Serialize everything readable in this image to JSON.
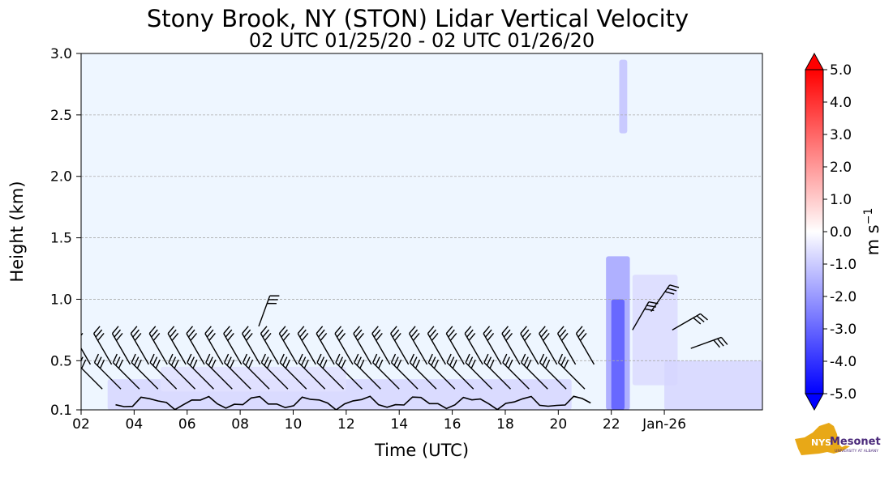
{
  "chart_data": {
    "type": "heatmap",
    "title": "Stony Brook, NY (STON) Lidar Vertical Velocity",
    "subtitle": "02 UTC 01/25/20 - 02 UTC 01/26/20",
    "xlabel": "Time (UTC)",
    "ylabel": "Height (km)",
    "xlim": [
      2,
      27.7
    ],
    "ylim": [
      0.1,
      3.0
    ],
    "x_tick_values": [
      2,
      4,
      6,
      8,
      10,
      12,
      14,
      16,
      18,
      20,
      22,
      24
    ],
    "x_tick_labels": [
      "02",
      "04",
      "06",
      "08",
      "10",
      "12",
      "14",
      "16",
      "18",
      "20",
      "22",
      "Jan-26"
    ],
    "y_tick_values": [
      0.1,
      0.5,
      1.0,
      1.5,
      2.0,
      2.5,
      3.0
    ],
    "y_tick_labels": [
      "0.1",
      "0.5",
      "1.0",
      "1.5",
      "2.0",
      "2.5",
      "3.0"
    ],
    "grid": "horizontal dashed",
    "colorbar": {
      "label": "m s",
      "label_superscript": "−1",
      "vmin": -5.0,
      "vmax": 5.0,
      "tick_values": [
        5,
        4,
        3,
        2,
        1,
        0,
        -1,
        -2,
        -3,
        -4,
        -5
      ],
      "tick_labels": [
        "5.0",
        "4.0",
        "3.0",
        "2.0",
        "1.0",
        "0.0",
        "-1.0",
        "-2.0",
        "-3.0",
        "-4.0",
        "-5.0"
      ],
      "extend": "both"
    },
    "velocity_regions": [
      {
        "x0": 2.0,
        "x1": 27.7,
        "y0": 0.1,
        "y1": 3.0,
        "value": -0.3
      },
      {
        "x0": 3.0,
        "x1": 20.5,
        "y0": 0.1,
        "y1": 0.35,
        "value": -0.8
      },
      {
        "x0": 5.0,
        "x1": 12.0,
        "y0": 0.25,
        "y1": 0.45,
        "value": -0.6
      },
      {
        "x0": 21.8,
        "x1": 22.7,
        "y0": 0.1,
        "y1": 1.35,
        "value": -1.8
      },
      {
        "x0": 22.0,
        "x1": 22.5,
        "y0": 0.1,
        "y1": 1.0,
        "value": -3.2
      },
      {
        "x0": 22.3,
        "x1": 22.6,
        "y0": 2.35,
        "y1": 2.95,
        "value": -1.2
      },
      {
        "x0": 22.8,
        "x1": 24.5,
        "y0": 0.3,
        "y1": 1.2,
        "value": -0.7
      },
      {
        "x0": 24.0,
        "x1": 27.7,
        "y0": 0.1,
        "y1": 0.5,
        "value": -0.8
      }
    ],
    "wind_barb_heights_km": [
      0.27,
      0.47
    ],
    "wind_barb_hours": [
      2.0,
      2.8,
      3.5,
      4.2,
      4.9,
      5.6,
      6.3,
      7.0,
      7.7,
      8.4,
      9.1,
      9.8,
      10.5,
      11.2,
      11.9,
      12.6,
      13.3,
      14.0,
      14.7,
      15.4,
      16.1,
      16.8,
      17.5,
      18.2,
      18.9,
      19.6,
      20.3,
      21.0
    ],
    "upper_barbs": [
      {
        "hour": 8.7,
        "height_km": 0.78,
        "lean_deg": 20
      },
      {
        "hour": 22.8,
        "height_km": 0.75,
        "lean_deg": 30
      },
      {
        "hour": 23.5,
        "height_km": 0.9,
        "lean_deg": 35
      },
      {
        "hour": 24.3,
        "height_km": 0.75,
        "lean_deg": 60
      },
      {
        "hour": 25.0,
        "height_km": 0.6,
        "lean_deg": 70
      }
    ]
  },
  "logo": {
    "badge": "NYS",
    "name": "Mesonet",
    "org": "UNIVERSITY AT ALBANY"
  },
  "colors": {
    "background_field": "#eef6ff",
    "barb": "#000000",
    "grid": "#aaaaaa",
    "logo_gold": "#e8a817",
    "logo_purple": "#4b2a7b"
  }
}
